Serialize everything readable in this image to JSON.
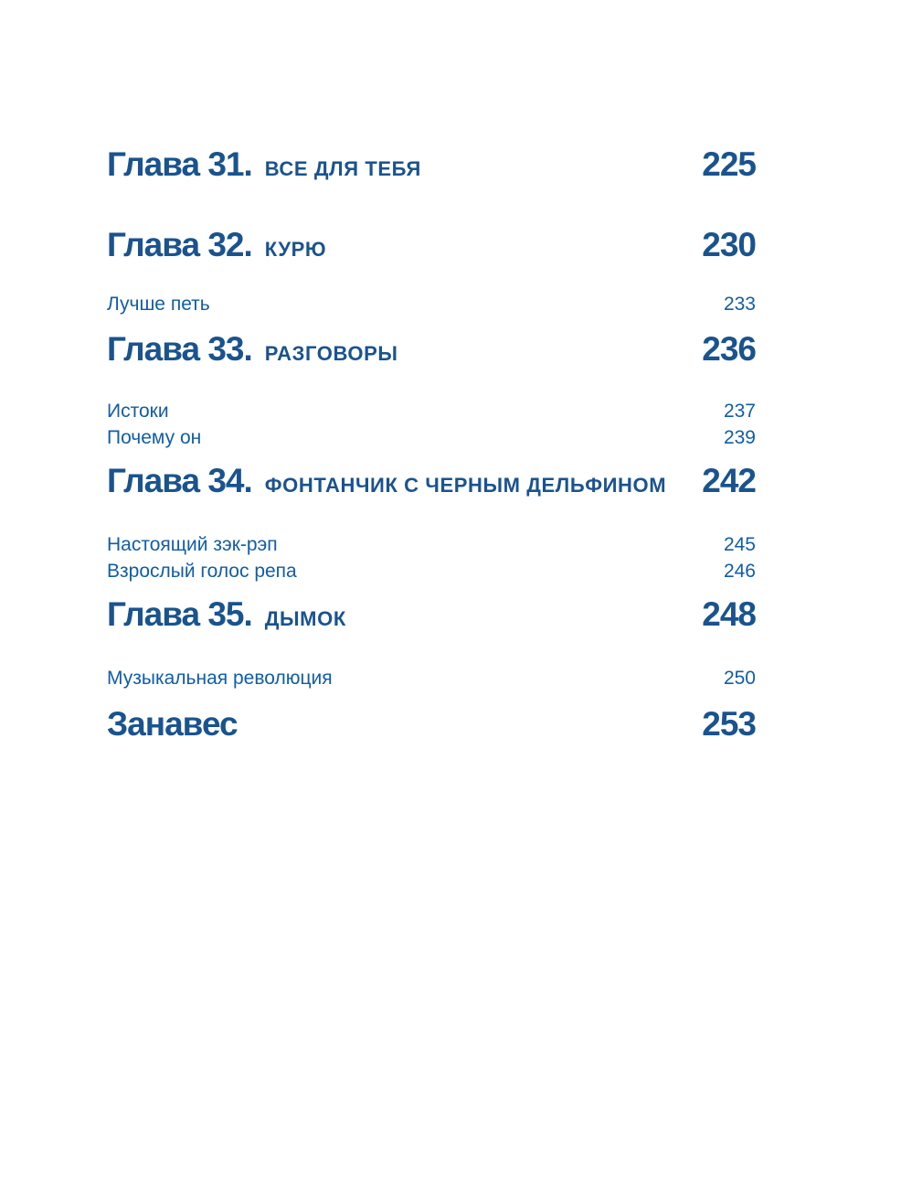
{
  "page": {
    "kind": "book-table-of-contents",
    "background_color": "#ffffff",
    "chapter_text_color": "#1a538e",
    "body_text_color": "#115da6"
  },
  "toc": {
    "entries": [
      {
        "type": "chapter",
        "label": "Глава 31.",
        "title": "ВСЕ ДЛЯ ТЕБЯ",
        "page": "225"
      },
      {
        "type": "chapter",
        "label": "Глава 32.",
        "title": "КУРЮ",
        "page": "230"
      },
      {
        "type": "sub",
        "title": "Лучше петь",
        "page": "233"
      },
      {
        "type": "chapter",
        "label": "Глава 33.",
        "title": "РАЗГОВОРЫ",
        "page": "236"
      },
      {
        "type": "sub",
        "title": "Истоки",
        "page": "237"
      },
      {
        "type": "sub",
        "title": "Почему он",
        "page": "239"
      },
      {
        "type": "chapter",
        "label": "Глава 34.",
        "title": "ФОНТАНЧИК С ЧЕРНЫМ ДЕЛЬФИНОМ",
        "page": "242"
      },
      {
        "type": "sub",
        "title": "Настоящий зэк-рэп",
        "page": "245"
      },
      {
        "type": "sub",
        "title": "Взрослый голос репа",
        "page": "246"
      },
      {
        "type": "chapter",
        "label": "Глава 35.",
        "title": "ДЫМОК",
        "page": "248"
      },
      {
        "type": "sub",
        "title": "Музыкальная революция",
        "page": "250"
      },
      {
        "type": "heading",
        "label": "Занавес",
        "page": "253"
      }
    ]
  }
}
